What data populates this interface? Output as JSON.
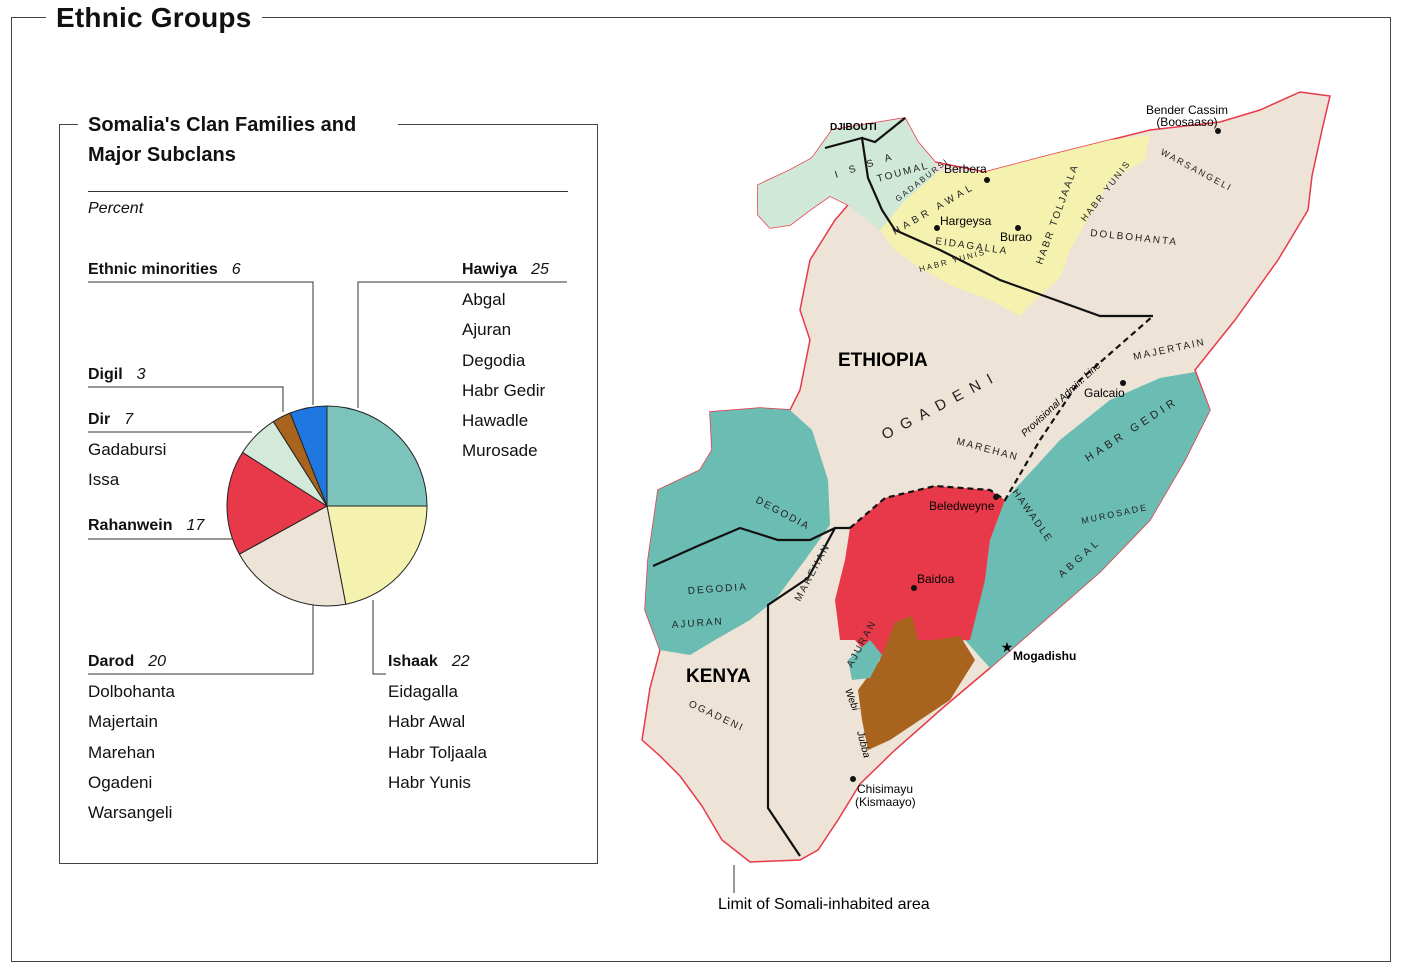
{
  "title": "Ethnic Groups",
  "panel": {
    "title_line1": "Somalia's Clan Families and",
    "title_line2": "Major Subclans",
    "unit": "Percent"
  },
  "chart_data": {
    "type": "pie",
    "title": "Somalia's Clan Families and Major Subclans",
    "unit": "Percent",
    "slices": [
      {
        "name": "Hawiya",
        "value": 25,
        "color": "#7cc4bb",
        "subclans": [
          "Abgal",
          "Ajuran",
          "Degodia",
          "Habr Gedir",
          "Hawadle",
          "Murosade"
        ]
      },
      {
        "name": "Ishaak",
        "value": 22,
        "color": "#f4f2ae",
        "subclans": [
          "Eidagalla",
          "Habr Awal",
          "Habr Toljaala",
          "Habr Yunis"
        ]
      },
      {
        "name": "Darod",
        "value": 20,
        "color": "#ede3d6",
        "subclans": [
          "Dolbohanta",
          "Majertain",
          "Marehan",
          "Ogadeni",
          "Warsangeli"
        ]
      },
      {
        "name": "Rahanwein",
        "value": 17,
        "color": "#e8394a",
        "subclans": []
      },
      {
        "name": "Dir",
        "value": 7,
        "color": "#d3eadb",
        "subclans": [
          "Gadabursi",
          "Issa"
        ]
      },
      {
        "name": "Digil",
        "value": 3,
        "color": "#a8631e",
        "subclans": []
      },
      {
        "name": "Ethnic minorities",
        "value": 6,
        "color": "#1f78e0",
        "subclans": []
      }
    ]
  },
  "map": {
    "countries": [
      "ETHIOPIA",
      "KENYA",
      "DJIBOUTI"
    ],
    "cities": [
      "Bender Cassim",
      "(Boosaaso)",
      "Berbera",
      "Hargeysa",
      "Burao",
      "Galcaio",
      "Beledweyne",
      "Baidoa",
      "Mogadishu",
      "Chisimayu",
      "(Kismaayo)"
    ],
    "clan_labels": [
      "ISSA",
      "TOUMAL",
      "GADABURSI",
      "HABR AWAL",
      "EIDAGALLA",
      "HABR YUNIS",
      "HABR TOLJAALA",
      "HABR YUNIS",
      "WARSANGELI",
      "DOLBOHANTA",
      "MAJERTAIN",
      "OGADENI",
      "MAREHAN",
      "HABR GEDIR",
      "HAWADLE",
      "MUROSADE",
      "ABGAL",
      "DEGODIA",
      "DEGODIA",
      "AJURAN",
      "MAREHAN",
      "AJURAN",
      "OGADENI"
    ],
    "rivers": [
      "Webi",
      "Jubba"
    ],
    "line_label": "Provisional Admin. Line",
    "legend_note": "Limit of Somali-inhabited area",
    "colors": {
      "land": "#ede3d6",
      "border": "#e8394a",
      "ishaak": "#f4f2ae",
      "hawiya": "#7cc4bb",
      "rahanwein": "#e8394a",
      "digil": "#a8631e",
      "dir": "#d3eadb"
    }
  }
}
